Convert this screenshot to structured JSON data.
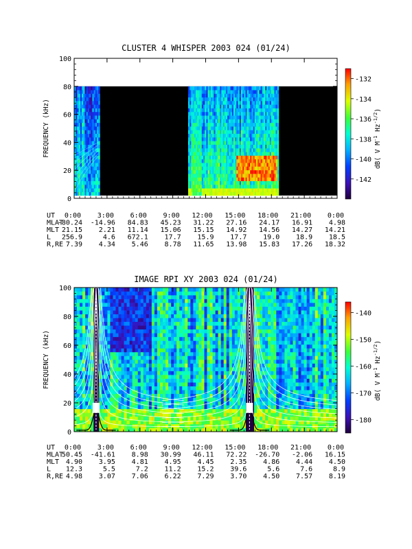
{
  "chart_data": [
    {
      "type": "heatmap",
      "title": "CLUSTER 4 WHISPER 2003 024 (01/24)",
      "ylabel": "FREQUENCY (kHz)",
      "ylim": [
        0,
        100
      ],
      "y_ticks": [
        "0",
        "20",
        "40",
        "60",
        "80",
        "100"
      ],
      "x_ticks": [
        "0:00",
        "3:00",
        "6:00",
        "9:00",
        "12:00",
        "15:00",
        "18:00",
        "21:00",
        "0:00"
      ],
      "x_range_hours": [
        0,
        24
      ],
      "colorbar": {
        "label": "dB( V M⁻¹ Hz⁻¹ᐟ²)",
        "label_text": "dB( V M",
        "range": [
          -144,
          -131
        ],
        "ticks": [
          "-132",
          "-134",
          "-136",
          "-138",
          "-140",
          "-142"
        ]
      },
      "data_coverage_hours": [
        [
          0,
          2.3
        ],
        [
          10.4,
          18.6
        ]
      ],
      "data_band_khz": [
        2,
        80
      ],
      "ephemeris": {
        "row_labels": [
          "UT",
          "MLAT",
          "MLT",
          "L",
          "R,RE"
        ],
        "UT": [
          "0:00",
          "3:00",
          "6:00",
          "9:00",
          "12:00",
          "15:00",
          "18:00",
          "21:00",
          "0:00"
        ],
        "MLAT": [
          "-80.24",
          "-14.96",
          "84.83",
          "45.23",
          "31.22",
          "27.16",
          "24.17",
          "16.91",
          "4.98"
        ],
        "MLT": [
          "21.15",
          "2.21",
          "11.14",
          "15.06",
          "15.15",
          "14.92",
          "14.56",
          "14.27",
          "14.21"
        ],
        "L": [
          "256.9",
          "4.6",
          "672.1",
          "17.7",
          "15.9",
          "17.7",
          "19.0",
          "18.9",
          "18.5"
        ],
        "R,RE": [
          "7.39",
          "4.34",
          "5.46",
          "8.78",
          "11.65",
          "13.98",
          "15.83",
          "17.26",
          "18.32"
        ]
      }
    },
    {
      "type": "heatmap",
      "title": "IMAGE RPI XY 2003 024 (01/24)",
      "ylabel": "FREQUENCY (kHz)",
      "ylim": [
        0,
        100
      ],
      "y_ticks": [
        "0",
        "20",
        "40",
        "60",
        "80",
        "100"
      ],
      "x_ticks": [
        "0:00",
        "3:00",
        "6:00",
        "9:00",
        "12:00",
        "15:00",
        "18:00",
        "21:00",
        "0:00"
      ],
      "x_range_hours": [
        0,
        24
      ],
      "colorbar": {
        "label_text": "dB( V M",
        "range": [
          -185,
          -136
        ],
        "ticks": [
          "-140",
          "-150",
          "-160",
          "-170",
          "-180"
        ]
      },
      "perigee_hours": [
        2.0,
        16.0
      ],
      "ephemeris": {
        "row_labels": [
          "UT",
          "MLAT",
          "MLT",
          "L",
          "R,RE"
        ],
        "UT": [
          "0:00",
          "3:00",
          "6:00",
          "9:00",
          "12:00",
          "15:00",
          "18:00",
          "21:00",
          "0:00"
        ],
        "MLAT": [
          "50.45",
          "-41.61",
          "8.98",
          "30.99",
          "46.11",
          "72.22",
          "-26.70",
          "-2.06",
          "16.15"
        ],
        "MLT": [
          "4.90",
          "3.95",
          "4.81",
          "4.95",
          "4.45",
          "2.35",
          "4.86",
          "4.44",
          "4.50"
        ],
        "L": [
          "12.3",
          "5.5",
          "7.2",
          "11.2",
          "15.2",
          "39.6",
          "5.6",
          "7.6",
          "8.9"
        ],
        "R,RE": [
          "4.98",
          "3.07",
          "7.06",
          "6.22",
          "7.29",
          "3.70",
          "4.50",
          "7.57",
          "8.19"
        ]
      }
    }
  ]
}
